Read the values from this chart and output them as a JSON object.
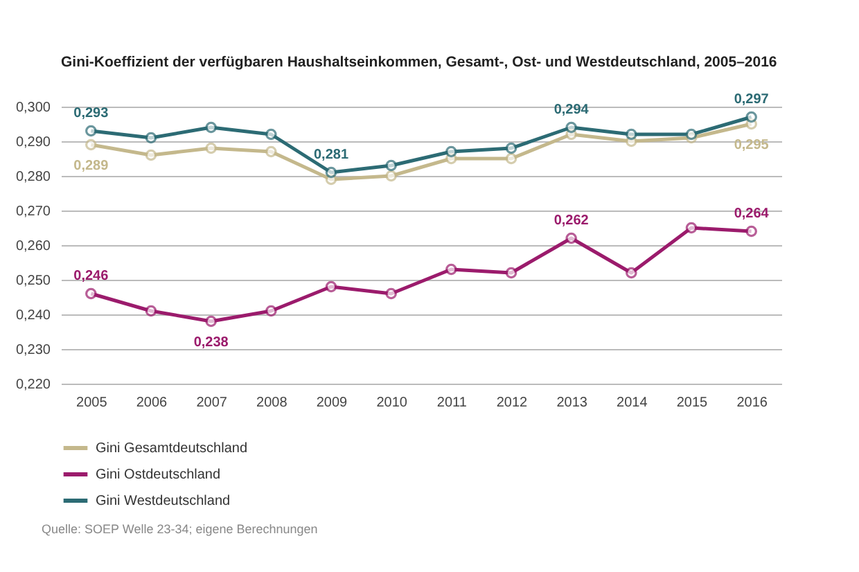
{
  "chart_data": {
    "type": "line",
    "title": "Gini-Koeffizient der verfügbaren Haushaltseinkommen, Gesamt-, Ost- und Westdeutschland, 2005–2016",
    "categories": [
      "2005",
      "2006",
      "2007",
      "2008",
      "2009",
      "2010",
      "2011",
      "2012",
      "2013",
      "2014",
      "2015",
      "2016"
    ],
    "series": [
      {
        "name": "Gini Gesamtdeutschland",
        "color": "#c4b88c",
        "values": [
          0.289,
          0.286,
          0.288,
          0.287,
          0.279,
          0.28,
          0.285,
          0.285,
          0.292,
          0.29,
          0.291,
          0.295
        ],
        "value_labels": [
          "0,289",
          null,
          null,
          null,
          null,
          null,
          null,
          null,
          null,
          null,
          null,
          "0,295"
        ]
      },
      {
        "name": "Gini Ostdeutschland",
        "color": "#9b1b6c",
        "values": [
          0.246,
          0.241,
          0.238,
          0.241,
          0.248,
          0.246,
          0.253,
          0.252,
          0.262,
          0.252,
          0.265,
          0.264
        ],
        "value_labels": [
          "0,246",
          null,
          "0,238",
          null,
          null,
          null,
          null,
          null,
          "0,262",
          null,
          null,
          "0,264"
        ]
      },
      {
        "name": "Gini Westdeutschland",
        "color": "#2c6b74",
        "values": [
          0.293,
          0.291,
          0.294,
          0.292,
          0.281,
          0.283,
          0.287,
          0.288,
          0.294,
          0.292,
          0.292,
          0.297
        ],
        "value_labels": [
          "0,293",
          null,
          null,
          null,
          "0,281",
          null,
          null,
          null,
          "0,294",
          null,
          null,
          "0,297"
        ]
      }
    ],
    "ylim": [
      0.22,
      0.3
    ],
    "yticks": [
      {
        "value": 0.22,
        "label": "0,220"
      },
      {
        "value": 0.23,
        "label": "0,230"
      },
      {
        "value": 0.24,
        "label": "0,240"
      },
      {
        "value": 0.25,
        "label": "0,250"
      },
      {
        "value": 0.26,
        "label": "0,260"
      },
      {
        "value": 0.27,
        "label": "0,270"
      },
      {
        "value": 0.28,
        "label": "0,280"
      },
      {
        "value": 0.29,
        "label": "0,290"
      },
      {
        "value": 0.3,
        "label": "0,300"
      }
    ],
    "grid": "y",
    "legend": "bottom left",
    "marker": "circle",
    "line_style": "solid",
    "annotations": [
      "Quelle: SOEP Welle 23-34; eigene Berechnungen"
    ]
  }
}
